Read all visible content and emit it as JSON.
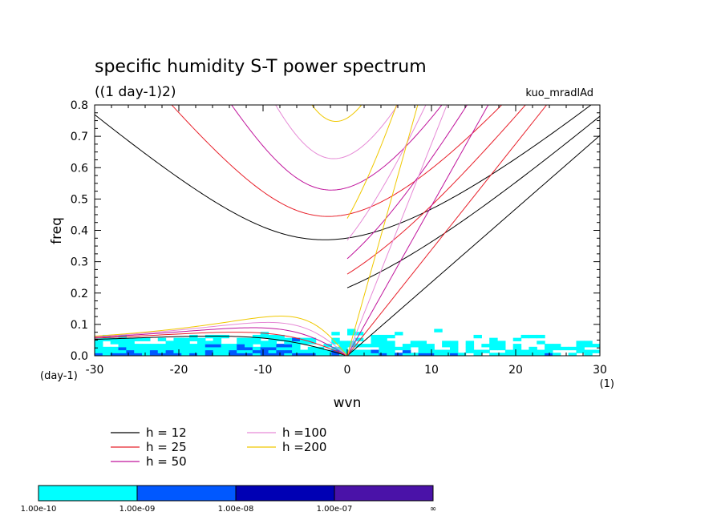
{
  "chart_data": {
    "type": "heatmap",
    "title": "specific humidity S-T power spectrum",
    "subtitle": "((1 day-1)2)",
    "run_label": "kuo_mradlAd",
    "xlabel": "wvn",
    "ylabel": "freq",
    "x_unit": "(1)",
    "y_unit": "(day-1)",
    "xlim": [
      -30,
      30
    ],
    "ylim": [
      0,
      0.8
    ],
    "x_ticks": [
      "-30",
      "-20",
      "-10",
      "0",
      "10",
      "20",
      "30"
    ],
    "y_ticks": [
      "0.0",
      "0.1",
      "0.2",
      "0.3",
      "0.4",
      "0.5",
      "0.6",
      "0.7",
      "0.8"
    ],
    "x_tick_values": [
      -30,
      -20,
      -10,
      0,
      10,
      20,
      30
    ],
    "y_tick_values": [
      0,
      0.1,
      0.2,
      0.3,
      0.4,
      0.5,
      0.6,
      0.7,
      0.8
    ],
    "dispersion_curves": [
      {
        "label": "h = 12",
        "h": 12,
        "color": "#000000"
      },
      {
        "label": "h = 25",
        "h": 25,
        "color": "#e8202a"
      },
      {
        "label": "h = 50",
        "h": 50,
        "color": "#c0149c"
      },
      {
        "label": "h =100",
        "h": 100,
        "color": "#e68ad6"
      },
      {
        "label": "h =200",
        "h": 200,
        "color": "#f0c800"
      }
    ],
    "colorbar": {
      "colors": [
        "#00ffff",
        "#0058ff",
        "#0000b4",
        "#4a12a8"
      ],
      "labels": [
        "1.00e-10",
        "1.00e-09",
        "1.00e-08",
        "1.00e-07",
        "∞"
      ]
    }
  }
}
